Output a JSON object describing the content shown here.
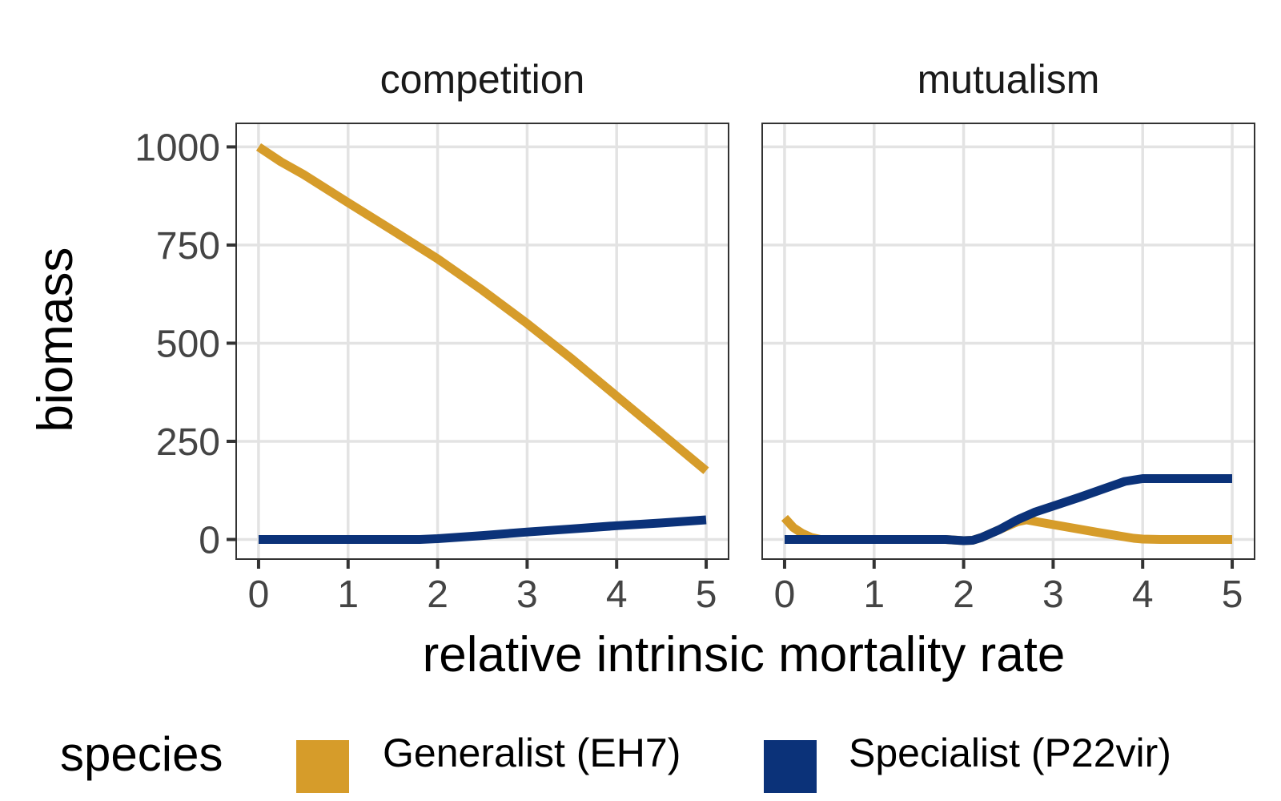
{
  "chart_data": {
    "type": "line",
    "xlabel": "relative intrinsic mortality rate",
    "ylabel": "biomass",
    "xlim": [
      -0.25,
      5.25
    ],
    "ylim": [
      -50,
      1060
    ],
    "x_ticks": [
      0,
      1,
      2,
      3,
      4,
      5
    ],
    "y_ticks": [
      0,
      250,
      500,
      750,
      1000
    ],
    "grid": true,
    "legend": {
      "title": "species",
      "position": "bottom",
      "entries": [
        {
          "name": "Generalist (EH7)",
          "color": "#D69C2A"
        },
        {
          "name": "Specialist (P22vir)",
          "color": "#0B3279"
        }
      ]
    },
    "panels": [
      {
        "title": "competition",
        "series": [
          {
            "name": "Generalist (EH7)",
            "color": "#D69C2A",
            "points": [
              [
                0,
                1000
              ],
              [
                0.25,
                962
              ],
              [
                0.5,
                930
              ],
              [
                1,
                858
              ],
              [
                1.5,
                787
              ],
              [
                2,
                715
              ],
              [
                2.5,
                635
              ],
              [
                3,
                550
              ],
              [
                3.5,
                460
              ],
              [
                4,
                365
              ],
              [
                4.5,
                270
              ],
              [
                5,
                175
              ]
            ]
          },
          {
            "name": "Specialist (P22vir)",
            "color": "#0B3279",
            "points": [
              [
                0,
                0
              ],
              [
                1,
                0
              ],
              [
                1.8,
                0
              ],
              [
                2,
                2
              ],
              [
                2.5,
                10
              ],
              [
                3,
                19
              ],
              [
                3.5,
                27
              ],
              [
                4,
                35
              ],
              [
                4.5,
                42
              ],
              [
                5,
                50
              ]
            ]
          }
        ]
      },
      {
        "title": "mutualism",
        "series": [
          {
            "name": "Generalist (EH7)",
            "color": "#D69C2A",
            "points": [
              [
                0,
                55
              ],
              [
                0.1,
                30
              ],
              [
                0.2,
                15
              ],
              [
                0.3,
                5
              ],
              [
                0.4,
                0
              ],
              [
                0.5,
                0
              ],
              [
                1,
                0
              ],
              [
                1.5,
                0
              ],
              [
                1.8,
                0
              ],
              [
                2,
                -3
              ],
              [
                2.1,
                -2
              ],
              [
                2.2,
                5
              ],
              [
                2.4,
                25
              ],
              [
                2.6,
                45
              ],
              [
                2.7,
                50
              ],
              [
                3,
                38
              ],
              [
                3.5,
                18
              ],
              [
                3.9,
                3
              ],
              [
                4,
                1
              ],
              [
                4.2,
                0
              ],
              [
                5,
                0
              ]
            ]
          },
          {
            "name": "Specialist (P22vir)",
            "color": "#0B3279",
            "points": [
              [
                0,
                0
              ],
              [
                0.5,
                0
              ],
              [
                1,
                0
              ],
              [
                1.5,
                0
              ],
              [
                1.8,
                0
              ],
              [
                2,
                -3
              ],
              [
                2.1,
                -2
              ],
              [
                2.2,
                5
              ],
              [
                2.4,
                25
              ],
              [
                2.6,
                50
              ],
              [
                2.8,
                70
              ],
              [
                3,
                85
              ],
              [
                3.3,
                108
              ],
              [
                3.6,
                132
              ],
              [
                3.8,
                148
              ],
              [
                4,
                155
              ],
              [
                4.3,
                155
              ],
              [
                5,
                155
              ]
            ]
          }
        ]
      }
    ]
  }
}
